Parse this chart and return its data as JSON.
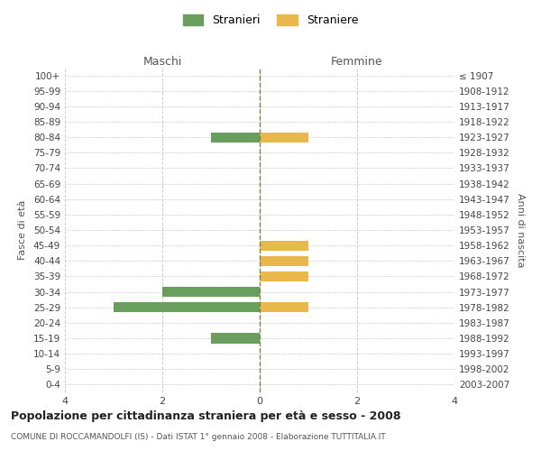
{
  "age_groups": [
    "100+",
    "95-99",
    "90-94",
    "85-89",
    "80-84",
    "75-79",
    "70-74",
    "65-69",
    "60-64",
    "55-59",
    "50-54",
    "45-49",
    "40-44",
    "35-39",
    "30-34",
    "25-29",
    "20-24",
    "15-19",
    "10-14",
    "5-9",
    "0-4"
  ],
  "birth_years": [
    "≤ 1907",
    "1908-1912",
    "1913-1917",
    "1918-1922",
    "1923-1927",
    "1928-1932",
    "1933-1937",
    "1938-1942",
    "1943-1947",
    "1948-1952",
    "1953-1957",
    "1958-1962",
    "1963-1967",
    "1968-1972",
    "1973-1977",
    "1978-1982",
    "1983-1987",
    "1988-1992",
    "1993-1997",
    "1998-2002",
    "2003-2007"
  ],
  "maschi_stranieri": [
    0,
    0,
    0,
    0,
    -1,
    0,
    0,
    0,
    0,
    0,
    0,
    0,
    0,
    0,
    -2,
    -3,
    0,
    -1,
    0,
    0,
    0
  ],
  "femmine_straniere": [
    0,
    0,
    0,
    0,
    1,
    0,
    0,
    0,
    0,
    0,
    0,
    1,
    1,
    1,
    0,
    1,
    0,
    0,
    0,
    0,
    0
  ],
  "color_maschi": "#6a9e5e",
  "color_femmine": "#e8b84b",
  "xlim": [
    -4,
    4
  ],
  "xlabel_left": "Maschi",
  "xlabel_right": "Femmine",
  "ylabel_left": "Fasce di età",
  "ylabel_right": "Anni di nascita",
  "title_main": "Popolazione per cittadinanza straniera per età e sesso - 2008",
  "title_sub": "COMUNE DI ROCCAMANDOLFI (IS) - Dati ISTAT 1° gennaio 2008 - Elaborazione TUTTITALIA.IT",
  "legend_maschi": "Stranieri",
  "legend_femmine": "Straniere",
  "xticks": [
    -4,
    -2,
    0,
    2,
    4
  ],
  "xtick_labels": [
    "4",
    "2",
    "0",
    "2",
    "4"
  ],
  "grid_color": "#cccccc",
  "bg_color": "#ffffff",
  "bar_height": 0.65,
  "center_line_color": "#808040"
}
